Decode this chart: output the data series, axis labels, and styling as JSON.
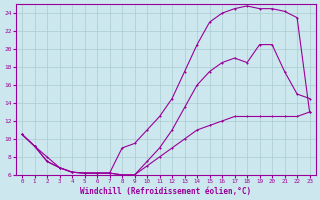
{
  "xlabel": "Windchill (Refroidissement éolien,°C)",
  "ylabel": "",
  "bg_color": "#cce8ee",
  "line_color": "#990099",
  "grid_color": "#aaccd0",
  "xlim": [
    -0.5,
    23.5
  ],
  "ylim": [
    6,
    25
  ],
  "xticks": [
    0,
    1,
    2,
    3,
    4,
    5,
    6,
    7,
    8,
    9,
    10,
    11,
    12,
    13,
    14,
    15,
    16,
    17,
    18,
    19,
    20,
    21,
    22,
    23
  ],
  "yticks": [
    6,
    8,
    10,
    12,
    14,
    16,
    18,
    20,
    22,
    24
  ],
  "line1_x": [
    0,
    1,
    2,
    3,
    4,
    5,
    6,
    7,
    8,
    9,
    10,
    11,
    12,
    13,
    14,
    15,
    16,
    17,
    18,
    19,
    20,
    21,
    22,
    23
  ],
  "line1_y": [
    10.5,
    9.2,
    8.0,
    6.8,
    6.3,
    6.2,
    6.2,
    6.2,
    9.0,
    9.5,
    11.0,
    12.5,
    14.5,
    17.5,
    20.5,
    23.0,
    24.0,
    24.5,
    24.8,
    24.5,
    24.5,
    24.2,
    23.5,
    13.0
  ],
  "line2_x": [
    0,
    1,
    2,
    3,
    4,
    5,
    6,
    7,
    8,
    9,
    10,
    11,
    12,
    13,
    14,
    15,
    16,
    17,
    18,
    19,
    20,
    21,
    22,
    23
  ],
  "line2_y": [
    10.5,
    9.2,
    7.5,
    6.8,
    6.3,
    6.2,
    6.2,
    6.2,
    6.0,
    6.0,
    7.5,
    9.0,
    11.0,
    13.5,
    16.0,
    17.5,
    18.5,
    19.0,
    18.5,
    20.5,
    20.5,
    17.5,
    15.0,
    14.5
  ],
  "line3_x": [
    0,
    1,
    2,
    3,
    4,
    5,
    6,
    7,
    8,
    9,
    10,
    11,
    12,
    13,
    14,
    15,
    16,
    17,
    18,
    19,
    20,
    21,
    22,
    23
  ],
  "line3_y": [
    10.5,
    9.2,
    7.5,
    6.8,
    6.3,
    6.2,
    6.2,
    6.2,
    6.0,
    6.0,
    7.0,
    8.0,
    9.0,
    10.0,
    11.0,
    11.5,
    12.0,
    12.5,
    12.5,
    12.5,
    12.5,
    12.5,
    12.5,
    13.0
  ]
}
